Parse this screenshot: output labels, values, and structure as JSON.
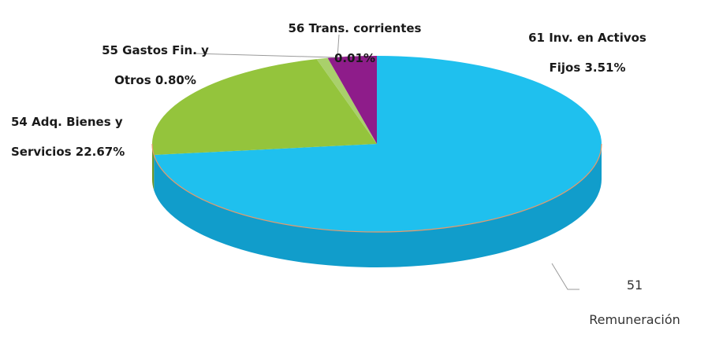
{
  "chart_data": {
    "type": "pie",
    "style": "3d",
    "slices": [
      {
        "name": "51 Remuneración",
        "value": 73.01,
        "label": "",
        "color": "#1fc0ee",
        "side_color": "#119dcb"
      },
      {
        "name": "54 Adq. Bienes y Servicios",
        "value": 22.67,
        "label": "22.67%",
        "color": "#94c43c",
        "side_color": "#6f9726"
      },
      {
        "name": "55 Gastos Fin. y Otros",
        "value": 0.8,
        "label": "0.80%",
        "color": "#a9d06b",
        "side_color": "#7ca03e"
      },
      {
        "name": "56 Trans. corrientes",
        "value": 0.01,
        "label": "0.01%",
        "color": "#b08040",
        "side_color": "#8a5f2a"
      },
      {
        "name": "61 Inv. en Activos Fijos",
        "value": 3.51,
        "label": "3.51%",
        "color": "#8e1c8a",
        "side_color": "#6a1367"
      }
    ]
  },
  "labels": {
    "remuneracion_num": "51",
    "remuneracion_text": "Remuneración",
    "bienes_line1": "54 Adq. Bienes y",
    "bienes_line2": "Servicios 22.67%",
    "gastos_line1": "55 Gastos Fin. y",
    "gastos_line2": "Otros 0.80%",
    "trans_line1": "56 Trans. corrientes",
    "trans_line2": "0.01%",
    "inv_line1": "61 Inv. en Activos",
    "inv_line2": "Fijos 3.51%"
  }
}
